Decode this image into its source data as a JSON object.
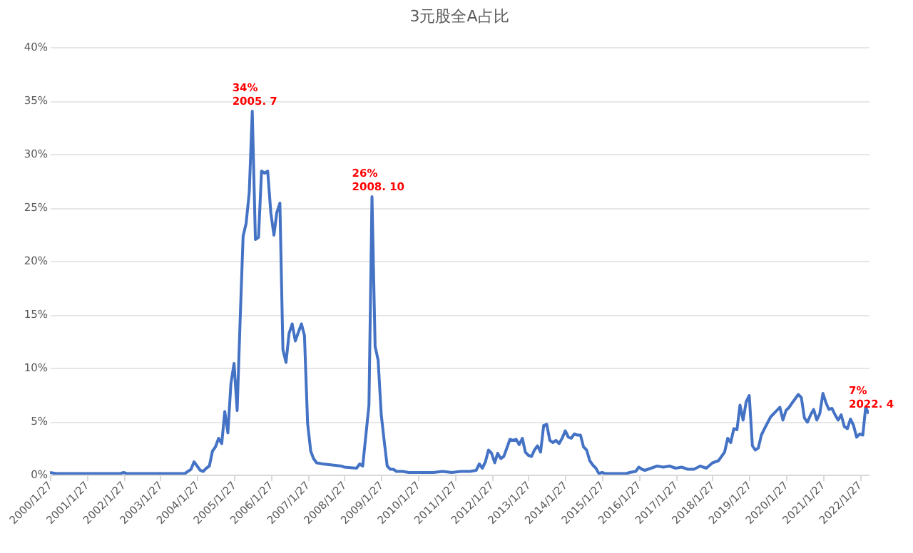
{
  "chart_data": {
    "type": "line",
    "title": "3元股全A占比",
    "x": [
      "2000-01-27",
      "2000-03-27",
      "2000-07-27",
      "2001-01-27",
      "2001-07-27",
      "2001-12-27",
      "2002-01-27",
      "2002-02-27",
      "2002-07-27",
      "2003-01-27",
      "2003-03-27",
      "2003-06-27",
      "2003-09-27",
      "2003-11-27",
      "2003-12-27",
      "2004-01-27",
      "2004-02-27",
      "2004-03-27",
      "2004-04-27",
      "2004-05-27",
      "2004-06-27",
      "2004-07-27",
      "2004-08-27",
      "2004-09-27",
      "2004-10-27",
      "2004-11-27",
      "2004-12-27",
      "2005-01-27",
      "2005-02-27",
      "2005-03-27",
      "2005-04-27",
      "2005-05-27",
      "2005-06-27",
      "2005-07-27",
      "2005-08-27",
      "2005-09-27",
      "2005-10-27",
      "2005-11-27",
      "2005-12-27",
      "2006-01-27",
      "2006-02-27",
      "2006-03-27",
      "2006-04-27",
      "2006-05-27",
      "2006-06-27",
      "2006-07-27",
      "2006-08-27",
      "2006-09-27",
      "2006-10-27",
      "2006-11-27",
      "2006-12-27",
      "2007-01-27",
      "2007-02-27",
      "2007-03-27",
      "2007-04-27",
      "2007-06-27",
      "2007-09-27",
      "2007-12-27",
      "2008-01-27",
      "2008-05-27",
      "2008-06-27",
      "2008-07-27",
      "2008-09-27",
      "2008-10-27",
      "2008-11-27",
      "2008-12-27",
      "2009-01-27",
      "2009-02-27",
      "2009-03-27",
      "2009-04-27",
      "2009-05-27",
      "2009-06-27",
      "2009-08-27",
      "2009-10-27",
      "2010-01-27",
      "2010-06-27",
      "2010-09-27",
      "2010-12-27",
      "2011-03-27",
      "2011-06-27",
      "2011-08-27",
      "2011-09-27",
      "2011-10-27",
      "2011-11-27",
      "2011-12-27",
      "2012-01-27",
      "2012-02-27",
      "2012-03-27",
      "2012-04-27",
      "2012-05-27",
      "2012-06-27",
      "2012-07-27",
      "2012-08-27",
      "2012-09-27",
      "2012-10-27",
      "2012-11-27",
      "2012-12-27",
      "2013-01-27",
      "2013-02-27",
      "2013-03-27",
      "2013-04-27",
      "2013-05-27",
      "2013-06-27",
      "2013-07-27",
      "2013-08-27",
      "2013-09-27",
      "2013-10-27",
      "2013-11-27",
      "2013-12-27",
      "2014-01-27",
      "2014-02-27",
      "2014-03-27",
      "2014-04-27",
      "2014-05-27",
      "2014-06-27",
      "2014-07-27",
      "2014-08-27",
      "2014-09-27",
      "2014-10-27",
      "2014-11-27",
      "2014-12-27",
      "2015-01-27",
      "2015-02-27",
      "2015-09-27",
      "2015-10-27",
      "2015-12-27",
      "2016-01-27",
      "2016-02-27",
      "2016-03-27",
      "2016-05-27",
      "2016-07-27",
      "2016-09-27",
      "2016-11-27",
      "2017-01-27",
      "2017-03-27",
      "2017-05-27",
      "2017-07-27",
      "2017-09-27",
      "2017-11-27",
      "2018-01-27",
      "2018-03-27",
      "2018-05-27",
      "2018-06-27",
      "2018-07-27",
      "2018-08-27",
      "2018-09-27",
      "2018-10-27",
      "2018-11-27",
      "2018-12-27",
      "2019-01-27",
      "2019-02-27",
      "2019-03-27",
      "2019-04-27",
      "2019-05-27",
      "2019-06-27",
      "2019-08-27",
      "2019-09-27",
      "2019-10-27",
      "2019-11-27",
      "2019-12-27",
      "2020-01-27",
      "2020-02-27",
      "2020-03-27",
      "2020-04-27",
      "2020-05-27",
      "2020-06-27",
      "2020-07-27",
      "2020-08-27",
      "2020-09-27",
      "2020-10-27",
      "2020-11-27",
      "2020-12-27",
      "2021-01-27",
      "2021-02-27",
      "2021-03-27",
      "2021-04-27",
      "2021-05-27",
      "2021-06-27",
      "2021-07-27",
      "2021-08-27",
      "2021-09-27",
      "2021-10-27",
      "2021-11-27",
      "2021-12-27",
      "2022-01-27",
      "2022-02-27",
      "2022-03-27",
      "2022-04-27"
    ],
    "series": [
      {
        "color": "#4472c4",
        "values": [
          0.2,
          0.1,
          0.1,
          0.1,
          0.1,
          0.1,
          0.2,
          0.1,
          0.1,
          0.1,
          0.1,
          0.1,
          0.1,
          0.5,
          1.2,
          0.8,
          0.4,
          0.3,
          0.6,
          0.8,
          2.2,
          2.6,
          3.4,
          2.9,
          5.9,
          3.9,
          8.5,
          10.4,
          6.0,
          14,
          22.3,
          23.5,
          26.4,
          34,
          22.0,
          22.2,
          28.4,
          28.2,
          28.4,
          24.5,
          22.4,
          24.5,
          25.4,
          11.7,
          10.5,
          13.2,
          14.1,
          12.5,
          13.3,
          14.1,
          13.0,
          4.8,
          2.2,
          1.5,
          1.1,
          1.0,
          0.9,
          0.8,
          0.7,
          0.6,
          1.0,
          0.8,
          6.5,
          26,
          12,
          10.7,
          5.6,
          3.0,
          0.8,
          0.5,
          0.5,
          0.3,
          0.3,
          0.2,
          0.2,
          0.2,
          0.3,
          0.2,
          0.3,
          0.3,
          0.4,
          1.0,
          0.6,
          1.2,
          2.3,
          2.0,
          1.1,
          2.0,
          1.5,
          1.7,
          2.5,
          3.3,
          3.2,
          3.3,
          2.8,
          3.4,
          2.1,
          1.8,
          1.7,
          2.3,
          2.7,
          2.1,
          4.6,
          4.7,
          3.2,
          3.0,
          3.2,
          2.9,
          3.4,
          4.1,
          3.5,
          3.4,
          3.8,
          3.7,
          3.7,
          2.6,
          2.3,
          1.3,
          0.9,
          0.6,
          0.1,
          0.2,
          0.1,
          0.1,
          0.2,
          0.3,
          0.7,
          0.5,
          0.4,
          0.6,
          0.8,
          0.7,
          0.8,
          0.6,
          0.7,
          0.5,
          0.5,
          0.8,
          0.6,
          1.1,
          1.3,
          2.1,
          3.4,
          3.0,
          4.3,
          4.2,
          6.5,
          5.1,
          6.8,
          7.4,
          2.7,
          2.3,
          2.5,
          3.7,
          4.3,
          5.4,
          5.7,
          6.0,
          6.3,
          5.1,
          6.0,
          6.3,
          6.7,
          7.1,
          7.5,
          7.2,
          5.3,
          4.9,
          5.6,
          6.1,
          5.1,
          5.7,
          7.6,
          6.7,
          6.1,
          6.2,
          5.6,
          5.1,
          5.6,
          4.5,
          4.3,
          5.2,
          4.6,
          3.5,
          3.8,
          3.7,
          6.3,
          5.7
        ]
      }
    ],
    "xlim": [
      "2000-01-27",
      "2022-04-27"
    ],
    "xticks": [
      {
        "value": "2000-01-27",
        "label": "2000/1/27"
      },
      {
        "value": "2001-01-27",
        "label": "2001/1/27"
      },
      {
        "value": "2002-01-27",
        "label": "2002/1/27"
      },
      {
        "value": "2003-01-27",
        "label": "2003/1/27"
      },
      {
        "value": "2004-01-27",
        "label": "2004/1/27"
      },
      {
        "value": "2005-01-27",
        "label": "2005/1/27"
      },
      {
        "value": "2006-01-27",
        "label": "2006/1/27"
      },
      {
        "value": "2007-01-27",
        "label": "2007/1/27"
      },
      {
        "value": "2008-01-27",
        "label": "2008/1/27"
      },
      {
        "value": "2009-01-27",
        "label": "2009/1/27"
      },
      {
        "value": "2010-01-27",
        "label": "2010/1/27"
      },
      {
        "value": "2011-01-27",
        "label": "2011/1/27"
      },
      {
        "value": "2012-01-27",
        "label": "2012/1/27"
      },
      {
        "value": "2013-01-27",
        "label": "2013/1/27"
      },
      {
        "value": "2014-01-27",
        "label": "2014/1/27"
      },
      {
        "value": "2015-01-27",
        "label": "2015/1/27"
      },
      {
        "value": "2016-01-27",
        "label": "2016/1/27"
      },
      {
        "value": "2017-01-27",
        "label": "2017/1/27"
      },
      {
        "value": "2018-01-27",
        "label": "2018/1/27"
      },
      {
        "value": "2019-01-27",
        "label": "2019/1/27"
      },
      {
        "value": "2020-01-27",
        "label": "2020/1/27"
      },
      {
        "value": "2021-01-27",
        "label": "2021/1/27"
      },
      {
        "value": "2022-01-27",
        "label": "2022/1/27"
      }
    ],
    "ylim": [
      0,
      40
    ],
    "yticks": [
      {
        "value": 0,
        "label": "0%"
      },
      {
        "value": 5,
        "label": "5%"
      },
      {
        "value": 10,
        "label": "10%"
      },
      {
        "value": 15,
        "label": "15%"
      },
      {
        "value": 20,
        "label": "20%"
      },
      {
        "value": 25,
        "label": "25%"
      },
      {
        "value": 30,
        "label": "30%"
      },
      {
        "value": 35,
        "label": "35%"
      },
      {
        "value": 40,
        "label": "40%"
      }
    ],
    "grid": "y",
    "annotations": [
      {
        "text": "34%\n2005. 7",
        "x": "2005-07-27",
        "y": 34
      },
      {
        "text": "26%\n2008. 10",
        "x": "2008-10-27",
        "y": 26
      },
      {
        "text": "7%\n2022. 4",
        "x": "2022-04-27",
        "y": 5.7
      }
    ]
  }
}
